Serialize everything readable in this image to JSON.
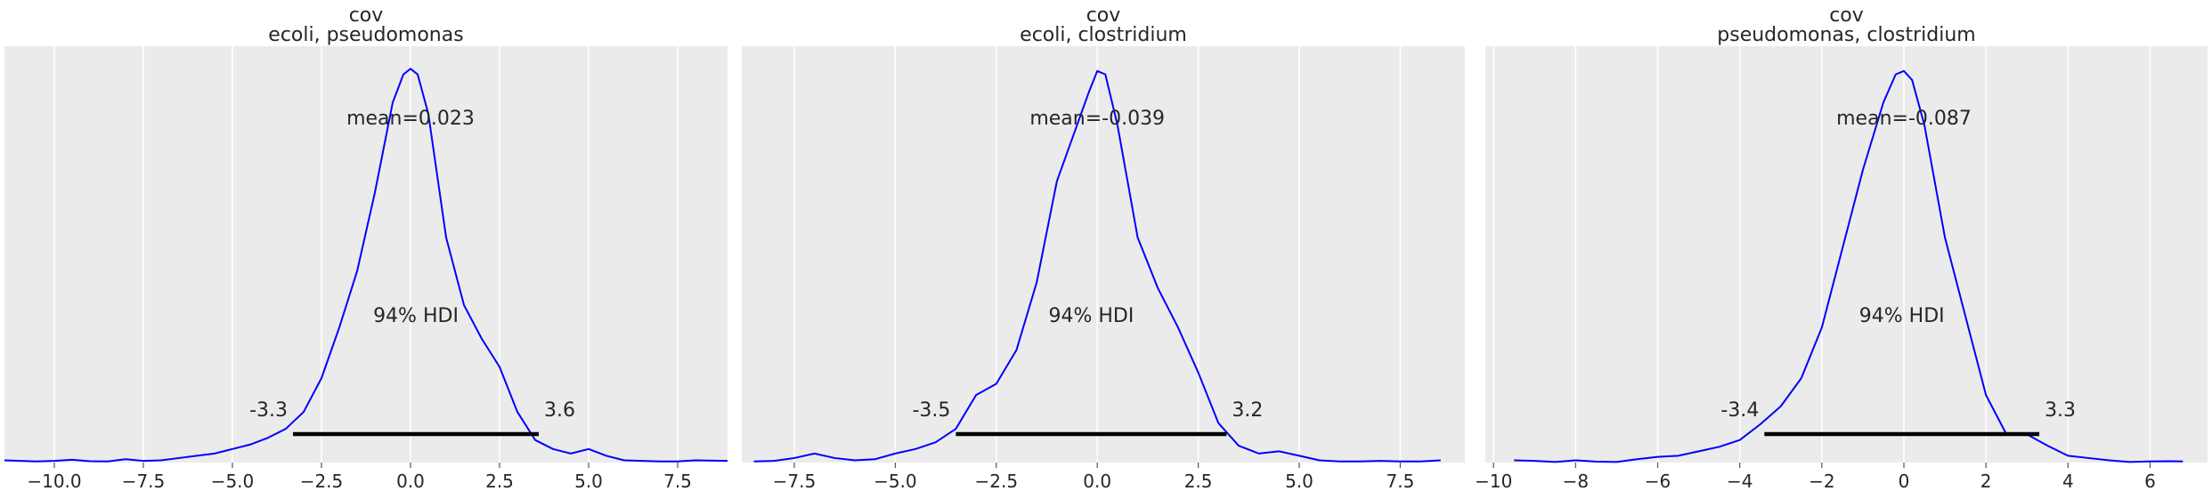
{
  "chart_data": [
    {
      "type": "line",
      "title": "cov",
      "subtitle": "ecoli, pseudomonas",
      "xlabel": "",
      "ylabel": "",
      "xlim": [
        -11.4,
        8.9
      ],
      "xticks": [
        -10.0,
        -7.5,
        -5.0,
        -2.5,
        0.0,
        2.5,
        5.0,
        7.5
      ],
      "xtick_labels": [
        "−10.0",
        "−7.5",
        "−5.0",
        "−2.5",
        "0.0",
        "2.5",
        "5.0",
        "7.5"
      ],
      "grid": true,
      "mean_label": "mean=0.023",
      "hdi_label": "94% HDI",
      "hdi": [
        -3.3,
        3.6
      ],
      "hdi_low_label": "-3.3",
      "hdi_high_label": "3.6",
      "line_color": "#0000ff",
      "series": [
        {
          "x": [
            -11.4,
            -10.5,
            -10.0,
            -9.5,
            -9.0,
            -8.5,
            -8.0,
            -7.5,
            -7.0,
            -6.5,
            -6.0,
            -5.5,
            -5.0,
            -4.5,
            -4.0,
            -3.5,
            -3.0,
            -2.5,
            -2.0,
            -1.5,
            -1.0,
            -0.5,
            -0.2,
            0.0,
            0.2,
            0.5,
            1.0,
            1.5,
            2.0,
            2.5,
            3.0,
            3.5,
            4.0,
            4.5,
            5.0,
            5.5,
            6.0,
            6.5,
            7.0,
            7.5,
            8.0,
            8.9
          ],
          "y": [
            0.002,
            0.001,
            0.0015,
            0.0025,
            0.0012,
            0.001,
            0.003,
            0.0015,
            0.002,
            0.004,
            0.006,
            0.008,
            0.012,
            0.016,
            0.022,
            0.03,
            0.045,
            0.075,
            0.12,
            0.17,
            0.24,
            0.32,
            0.345,
            0.35,
            0.345,
            0.31,
            0.2,
            0.14,
            0.11,
            0.085,
            0.045,
            0.02,
            0.012,
            0.008,
            0.012,
            0.006,
            0.002,
            0.0015,
            0.001,
            0.001,
            0.002,
            0.0015
          ]
        }
      ]
    },
    {
      "type": "line",
      "title": "cov",
      "subtitle": "ecoli, clostridium",
      "xlabel": "",
      "ylabel": "",
      "xlim": [
        -8.8,
        9.1
      ],
      "xticks": [
        -7.5,
        -5.0,
        -2.5,
        0.0,
        2.5,
        5.0,
        7.5
      ],
      "xtick_labels": [
        "−7.5",
        "−5.0",
        "−2.5",
        "0.0",
        "2.5",
        "5.0",
        "7.5"
      ],
      "grid": true,
      "mean_label": "mean=-0.039",
      "hdi_label": "94% HDI",
      "hdi": [
        -3.5,
        3.2
      ],
      "hdi_low_label": "-3.5",
      "hdi_high_label": "3.2",
      "line_color": "#0000ff",
      "series": [
        {
          "x": [
            -8.5,
            -8.0,
            -7.5,
            -7.0,
            -6.5,
            -6.0,
            -5.5,
            -5.0,
            -4.5,
            -4.0,
            -3.5,
            -3.0,
            -2.5,
            -2.0,
            -1.5,
            -1.0,
            -0.5,
            -0.2,
            0.0,
            0.2,
            0.5,
            1.0,
            1.5,
            2.0,
            2.5,
            3.0,
            3.5,
            4.0,
            4.5,
            5.0,
            5.5,
            6.0,
            6.5,
            7.0,
            7.5,
            8.0,
            8.5
          ],
          "y": [
            0.001,
            0.0015,
            0.004,
            0.008,
            0.004,
            0.002,
            0.003,
            0.008,
            0.012,
            0.018,
            0.03,
            0.06,
            0.07,
            0.1,
            0.16,
            0.25,
            0.3,
            0.33,
            0.348,
            0.345,
            0.3,
            0.2,
            0.155,
            0.12,
            0.08,
            0.035,
            0.015,
            0.008,
            0.01,
            0.006,
            0.002,
            0.001,
            0.001,
            0.0015,
            0.001,
            0.001,
            0.002
          ]
        }
      ]
    },
    {
      "type": "line",
      "title": "cov",
      "subtitle": "pseudomonas, clostridium",
      "xlabel": "",
      "ylabel": "",
      "xlim": [
        -10.2,
        7.4
      ],
      "xticks": [
        -10,
        -8,
        -6,
        -4,
        -2,
        0,
        2,
        4,
        6
      ],
      "xtick_labels": [
        "−10",
        "−8",
        "−6",
        "−4",
        "−2",
        "0",
        "2",
        "4",
        "6"
      ],
      "grid": true,
      "mean_label": "mean=-0.087",
      "hdi_label": "94% HDI",
      "hdi": [
        -3.4,
        3.3
      ],
      "hdi_low_label": "-3.4",
      "hdi_high_label": "3.3",
      "line_color": "#0000ff",
      "series": [
        {
          "x": [
            -9.5,
            -9.0,
            -8.5,
            -8.0,
            -7.5,
            -7.0,
            -6.5,
            -6.0,
            -5.5,
            -5.0,
            -4.5,
            -4.0,
            -3.5,
            -3.0,
            -2.5,
            -2.0,
            -1.5,
            -1.0,
            -0.5,
            -0.2,
            0.0,
            0.2,
            0.5,
            1.0,
            1.5,
            2.0,
            2.5,
            3.0,
            3.5,
            4.0,
            4.5,
            5.0,
            5.5,
            6.0,
            6.5,
            6.8
          ],
          "y": [
            0.002,
            0.0015,
            0.0005,
            0.002,
            0.0008,
            0.0005,
            0.003,
            0.005,
            0.006,
            0.01,
            0.014,
            0.02,
            0.034,
            0.05,
            0.075,
            0.12,
            0.19,
            0.26,
            0.32,
            0.345,
            0.348,
            0.34,
            0.3,
            0.2,
            0.13,
            0.06,
            0.025,
            0.025,
            0.015,
            0.006,
            0.004,
            0.002,
            0.0005,
            0.001,
            0.0012,
            0.001
          ]
        }
      ]
    }
  ]
}
